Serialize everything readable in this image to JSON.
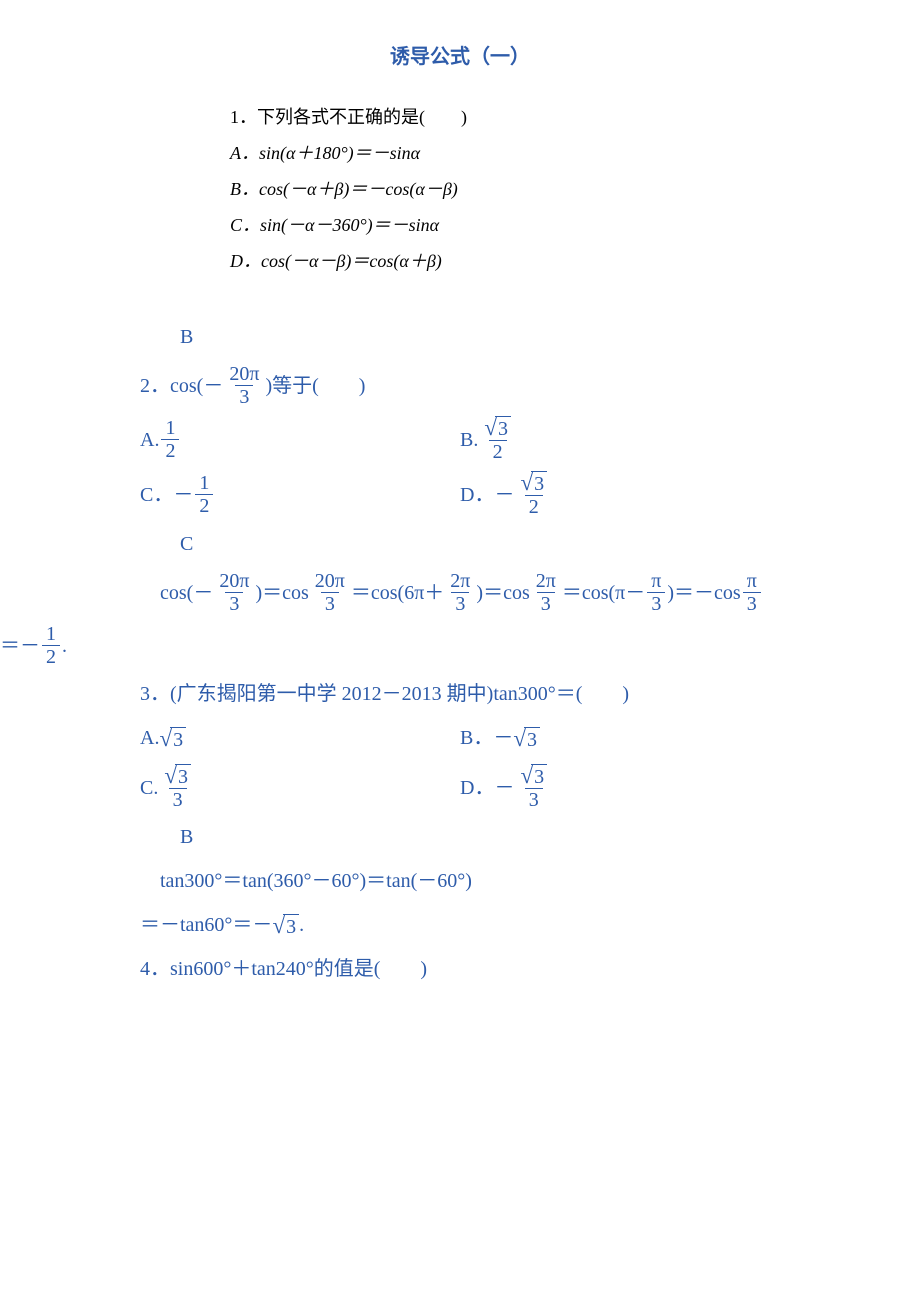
{
  "title": "诱导公式（一）",
  "q1": {
    "stem": "1．下列各式不正确的是(　　)",
    "optA": "A．sin(α＋180°)＝－sinα",
    "optB": "B．cos(－α＋β)＝－cos(α－β)",
    "optC": "C．sin(－α－360°)＝－sinα",
    "optD": "D．cos(－α－β)＝cos(α＋β)"
  },
  "q1_answer": "B",
  "q2": {
    "stem_prefix": "2．cos(－",
    "stem_frac_num": "20π",
    "stem_frac_den": "3",
    "stem_suffix": ")等于(　　)",
    "optA_prefix": "A.",
    "optA_num": "1",
    "optA_den": "2",
    "optB_prefix": "B.",
    "optB_sqrt_arg": "3",
    "optB_den": "2",
    "optC_prefix": "C．－",
    "optC_num": "1",
    "optC_den": "2",
    "optD_prefix": "D．－",
    "optD_sqrt_arg": "3",
    "optD_den": "2",
    "answer": "C",
    "sol_prefix": "cos(－",
    "sol_f1_num": "20π",
    "sol_f1_den": "3",
    "sol_eq1": ")＝cos",
    "sol_f2_num": "20π",
    "sol_f2_den": "3",
    "sol_eq2": "＝cos(6π＋",
    "sol_f3_num": "2π",
    "sol_f3_den": "3",
    "sol_eq3": ")＝cos",
    "sol_f4_num": "2π",
    "sol_f4_den": "3",
    "sol_eq4": "＝cos(π－",
    "sol_f5_num": "π",
    "sol_f5_den": "3",
    "sol_eq5": ")＝－cos",
    "sol_f6_num": "π",
    "sol_f6_den": "3",
    "sol_line2_prefix": "＝－",
    "sol_line2_num": "1",
    "sol_line2_den": "2",
    "sol_line2_suffix": "."
  },
  "q3": {
    "stem": "3．(广东揭阳第一中学 2012－2013 期中)tan300°＝(　　)",
    "optA_prefix": "A.",
    "optA_sqrt_arg": "3",
    "optB_prefix": "B．－",
    "optB_sqrt_arg": "3",
    "optC_prefix": "C.",
    "optC_sqrt_arg": "3",
    "optC_den": "3",
    "optD_prefix": "D．－",
    "optD_sqrt_arg": "3",
    "optD_den": "3",
    "answer": "B",
    "sol_line1": "tan300°＝tan(360°－60°)＝tan(－60°)",
    "sol_line2_prefix": "＝－tan60°＝－",
    "sol_line2_sqrt_arg": "3",
    "sol_line2_suffix": "."
  },
  "q4": {
    "stem": "4．sin600°＋tan240°的值是(　　)"
  },
  "colors": {
    "text_black": "#000000",
    "text_blue": "#2e5caa",
    "background": "#ffffff"
  }
}
